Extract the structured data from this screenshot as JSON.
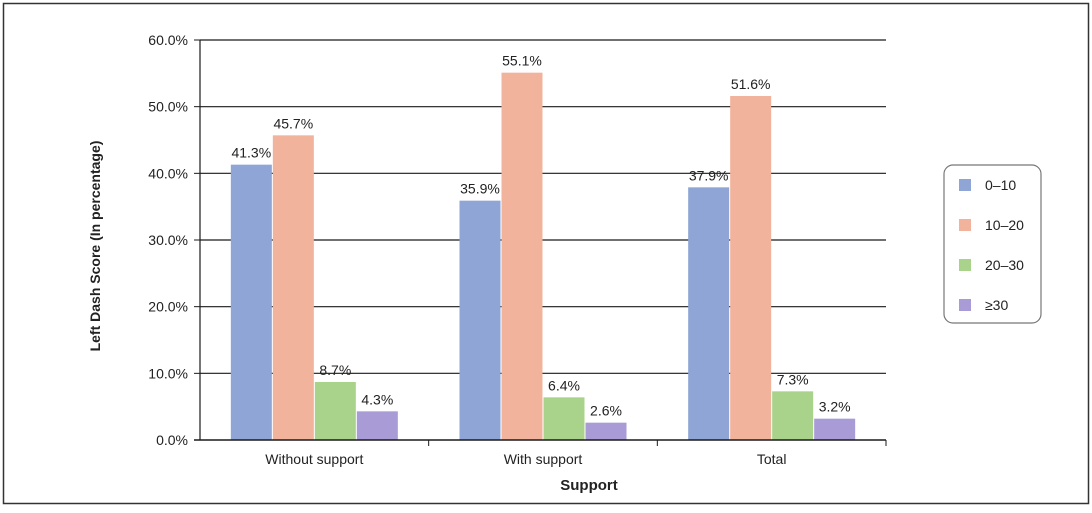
{
  "chart_data": {
    "type": "bar",
    "title": "",
    "xlabel": "Support",
    "ylabel": "Left Dash Score (In percentage)",
    "categories": [
      "Without support",
      "With support",
      "Total"
    ],
    "series": [
      {
        "name": "0–10",
        "values": [
          41.3,
          35.9,
          37.9
        ],
        "labels": [
          "41.3%",
          "35.9%",
          "37.9%"
        ],
        "color": "#8EA5D6"
      },
      {
        "name": "10–20",
        "values": [
          45.7,
          55.1,
          51.6
        ],
        "labels": [
          "45.7%",
          "55.1%",
          "51.6%"
        ],
        "color": "#F2B39C"
      },
      {
        "name": "20–30",
        "values": [
          8.7,
          6.4,
          7.3
        ],
        "labels": [
          "8.7%",
          "6.4%",
          "7.3%"
        ],
        "color": "#A9D38A"
      },
      {
        "name": "≥30",
        "values": [
          4.3,
          2.6,
          3.2
        ],
        "labels": [
          "4.3%",
          "2.6%",
          "3.2%"
        ],
        "color": "#A99BD6"
      }
    ],
    "ylim": [
      0,
      60
    ],
    "yticks": [
      0,
      10,
      20,
      30,
      40,
      50,
      60
    ],
    "ytick_labels": [
      "0.0%",
      "10.0%",
      "20.0%",
      "30.0%",
      "40.0%",
      "50.0%",
      "60.0%"
    ],
    "grid": true,
    "legend_position": "right"
  }
}
